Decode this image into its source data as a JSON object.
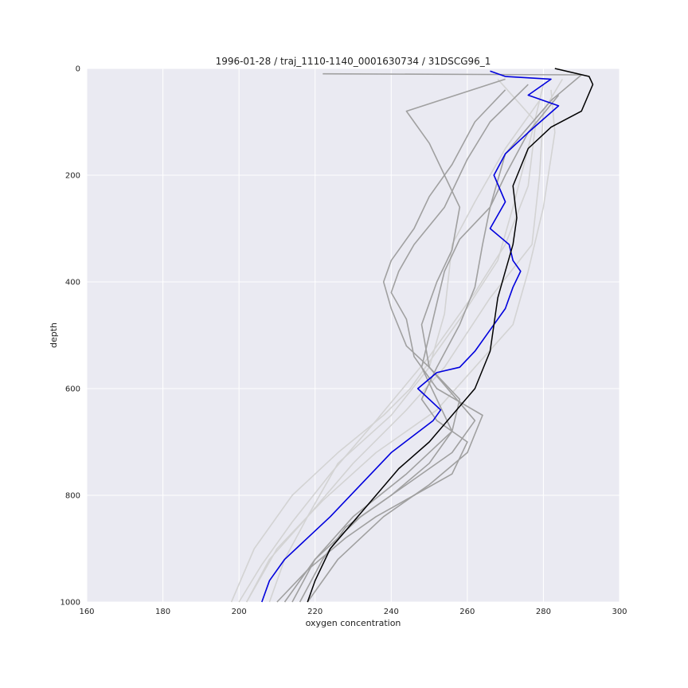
{
  "chart_data": {
    "type": "line",
    "title": "1996-01-28 / traj_1110-1140_0001630734 / 31DSCG96_1",
    "xlabel": "oxygen concentration",
    "ylabel": "depth",
    "xlim": [
      160,
      300
    ],
    "ylim": [
      1000,
      0
    ],
    "y_inverted": true,
    "x_ticks": [
      "160",
      "180",
      "200",
      "220",
      "240",
      "260",
      "280",
      "300"
    ],
    "y_ticks": [
      "0",
      "200",
      "400",
      "600",
      "800",
      "1000"
    ],
    "grid": true,
    "background": "#eaeaf2",
    "grid_color": "#ffffff",
    "series": [
      {
        "style": "light",
        "color": "#d3d3d3",
        "x": [
          268,
          278,
          276,
          270,
          262,
          250,
          236,
          224,
          214,
          206,
          200
        ],
        "y": [
          20,
          100,
          220,
          330,
          420,
          540,
          660,
          760,
          850,
          930,
          1000
        ]
      },
      {
        "style": "light",
        "color": "#d3d3d3",
        "x": [
          285,
          280,
          279,
          277,
          266,
          254,
          244,
          230,
          218,
          212,
          208
        ],
        "y": [
          20,
          80,
          200,
          330,
          430,
          560,
          640,
          740,
          840,
          920,
          1000
        ]
      },
      {
        "style": "light",
        "color": "#d3d3d3",
        "x": [
          282,
          283,
          280,
          276,
          272,
          262,
          252,
          236,
          222,
          210,
          202
        ],
        "y": [
          40,
          120,
          260,
          380,
          480,
          560,
          640,
          720,
          810,
          900,
          1000
        ]
      },
      {
        "style": "light",
        "color": "#d3d3d3",
        "x": [
          280,
          276,
          272,
          268,
          258,
          245,
          238,
          226,
          214,
          204,
          198
        ],
        "y": [
          30,
          150,
          260,
          360,
          470,
          600,
          650,
          720,
          800,
          900,
          1000
        ]
      },
      {
        "style": "light",
        "color": "#d3d3d3",
        "x": [
          279,
          270,
          262,
          256,
          254,
          250,
          240,
          226,
          218,
          208,
          202
        ],
        "y": [
          60,
          150,
          250,
          330,
          460,
          560,
          650,
          740,
          840,
          920,
          1000
        ]
      },
      {
        "style": "mid",
        "color": "#a0a0a0",
        "x": [
          222,
          290,
          282,
          270,
          266,
          264,
          262,
          258,
          252,
          248,
          252,
          260,
          256,
          246,
          236,
          228,
          218,
          210
        ],
        "y": [
          10,
          12,
          60,
          160,
          260,
          330,
          410,
          480,
          560,
          620,
          660,
          700,
          760,
          800,
          840,
          880,
          940,
          1000
        ]
      },
      {
        "style": "mid",
        "color": "#a0a0a0",
        "x": [
          270,
          262,
          256,
          250,
          246,
          240,
          238,
          240,
          244,
          250,
          258,
          256,
          244,
          230,
          220,
          212
        ],
        "y": [
          40,
          100,
          180,
          240,
          300,
          360,
          400,
          450,
          520,
          560,
          620,
          680,
          760,
          840,
          920,
          1000
        ]
      },
      {
        "style": "mid",
        "color": "#a0a0a0",
        "x": [
          270,
          244,
          250,
          254,
          258,
          256,
          252,
          248,
          250,
          262,
          256,
          244,
          232,
          220,
          214
        ],
        "y": [
          20,
          80,
          140,
          200,
          260,
          340,
          400,
          480,
          560,
          660,
          720,
          780,
          840,
          920,
          1000
        ]
      },
      {
        "style": "mid",
        "color": "#a0a0a0",
        "x": [
          276,
          266,
          260,
          254,
          246,
          242,
          240,
          244,
          246,
          252,
          264,
          260,
          250,
          238,
          226,
          218
        ],
        "y": [
          30,
          100,
          170,
          260,
          330,
          380,
          420,
          470,
          540,
          600,
          650,
          720,
          780,
          840,
          920,
          1000
        ]
      },
      {
        "style": "mid",
        "color": "#a0a0a0",
        "x": [
          284,
          276,
          270,
          266,
          258,
          254,
          252,
          250,
          248,
          252,
          256,
          250,
          240,
          228,
          222,
          216
        ],
        "y": [
          50,
          120,
          200,
          260,
          320,
          380,
          440,
          500,
          560,
          620,
          680,
          740,
          800,
          860,
          920,
          1000
        ]
      },
      {
        "style": "highlight",
        "color": "#0000dd",
        "x": [
          266,
          270,
          282,
          276,
          284,
          276,
          270,
          267,
          270,
          266,
          271,
          272,
          274,
          272,
          270,
          266,
          262,
          258,
          252,
          247,
          253,
          251,
          240,
          232,
          224,
          218,
          212,
          208,
          206
        ],
        "y": [
          5,
          15,
          20,
          50,
          70,
          120,
          160,
          200,
          250,
          300,
          330,
          360,
          380,
          410,
          450,
          490,
          530,
          560,
          570,
          600,
          640,
          660,
          720,
          780,
          840,
          880,
          920,
          960,
          1000
        ]
      },
      {
        "style": "main",
        "color": "#000000",
        "x": [
          283,
          292,
          293,
          290,
          282,
          276,
          272,
          273,
          272,
          270,
          268,
          266,
          262,
          250,
          242,
          236,
          230,
          224,
          220,
          218
        ],
        "y": [
          0,
          15,
          30,
          80,
          110,
          150,
          220,
          280,
          330,
          380,
          430,
          530,
          600,
          700,
          750,
          800,
          850,
          900,
          960,
          1000
        ]
      }
    ]
  }
}
